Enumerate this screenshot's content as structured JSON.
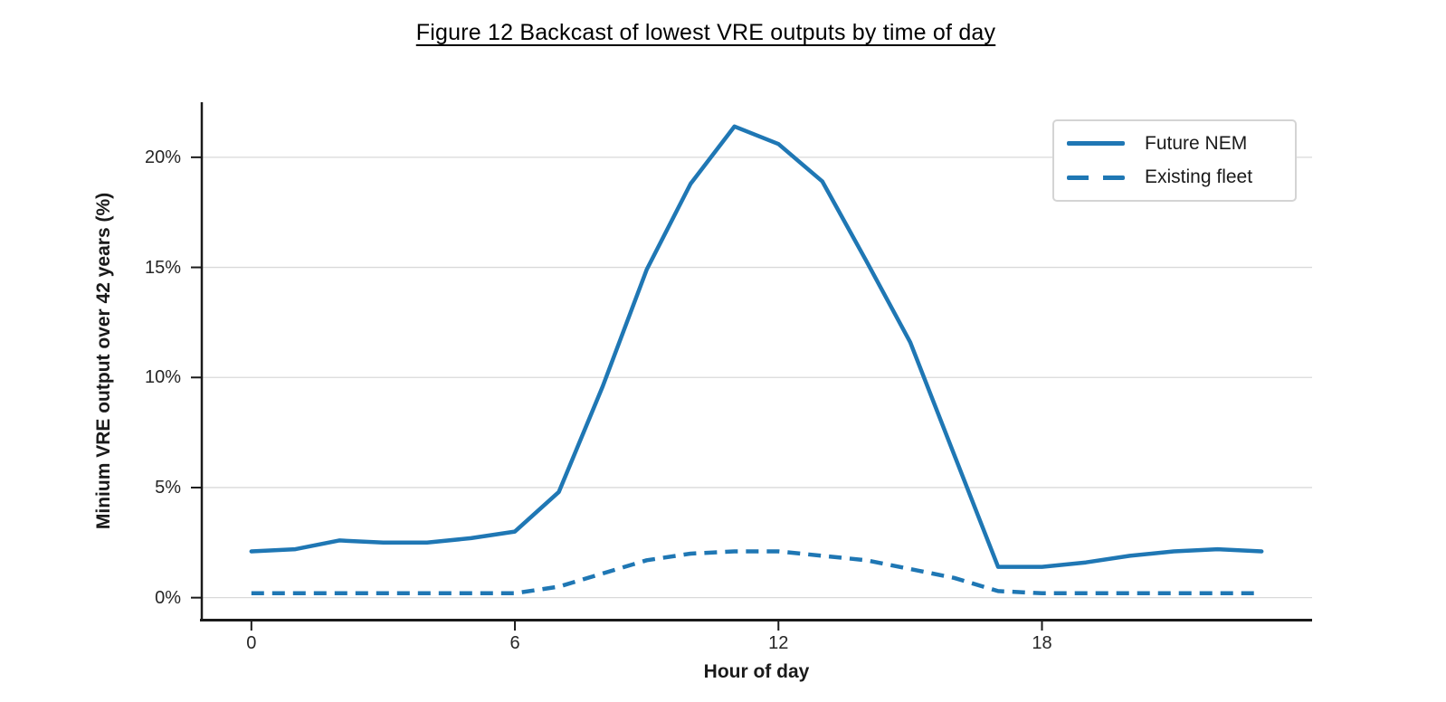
{
  "figure": {
    "title": "Figure 12 Backcast of lowest VRE outputs by time of day"
  },
  "chart_data": {
    "type": "line",
    "title": "Figure 12 Backcast of lowest VRE outputs by time of day",
    "xlabel": "Hour of day",
    "ylabel": "Minium VRE output over 42 years (%)",
    "x": [
      0,
      1,
      2,
      3,
      4,
      5,
      6,
      7,
      8,
      9,
      10,
      11,
      12,
      13,
      14,
      15,
      16,
      17,
      18,
      19,
      20,
      21,
      22,
      23
    ],
    "series": [
      {
        "name": "Future NEM",
        "line_style": "solid",
        "color": "#1f77b4",
        "values": [
          2.1,
          2.2,
          2.6,
          2.5,
          2.5,
          2.7,
          3.0,
          4.8,
          9.6,
          14.9,
          18.8,
          21.4,
          20.6,
          18.9,
          15.3,
          11.6,
          6.5,
          1.4,
          1.4,
          1.6,
          1.9,
          2.1,
          2.2,
          2.1
        ]
      },
      {
        "name": "Existing fleet",
        "line_style": "dashed",
        "color": "#1f77b4",
        "values": [
          0.2,
          0.2,
          0.2,
          0.2,
          0.2,
          0.2,
          0.2,
          0.5,
          1.1,
          1.7,
          2.0,
          2.1,
          2.1,
          1.9,
          1.7,
          1.3,
          0.9,
          0.3,
          0.2,
          0.2,
          0.2,
          0.2,
          0.2,
          0.2
        ]
      }
    ],
    "xticks": {
      "values": [
        0,
        6,
        12,
        18
      ],
      "labels": [
        "0",
        "6",
        "12",
        "18"
      ]
    },
    "yticks": {
      "values": [
        0,
        5,
        10,
        15,
        20
      ],
      "labels": [
        "0%",
        "5%",
        "10%",
        "15%",
        "20%"
      ]
    },
    "xlim": [
      -1.15,
      24.15
    ],
    "ylim": [
      -1,
      22.5
    ],
    "grid": "horizontal-major",
    "legend_position": "upper-right",
    "colors": {
      "line": "#1f77b4",
      "grid": "#d9d9d9",
      "axis": "#1a1a1a",
      "tick_text": "#262626"
    }
  }
}
